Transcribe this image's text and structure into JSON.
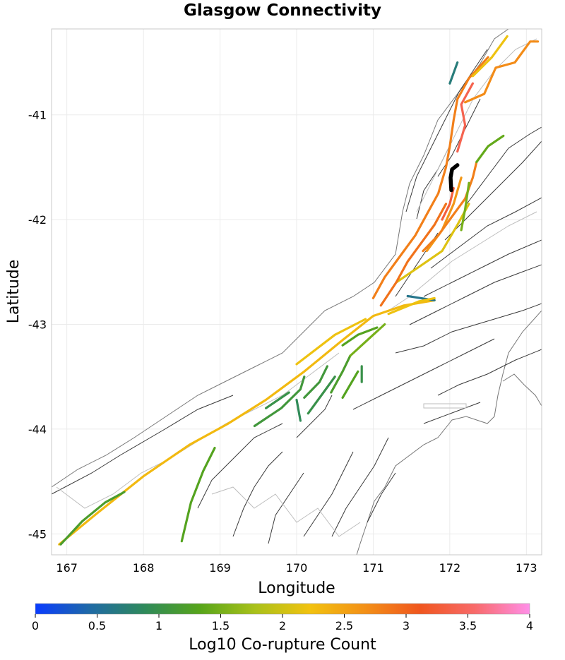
{
  "title": "Glasgow Connectivity",
  "x_label": "Longitude",
  "y_label": "Latitude",
  "x_ticks": [
    "167",
    "168",
    "169",
    "170",
    "171",
    "172",
    "173"
  ],
  "y_ticks": [
    "-41",
    "-42",
    "-43",
    "-44",
    "-45"
  ],
  "colorbar": {
    "label": "Log10 Co-rupture Count",
    "ticks": [
      "0",
      "0.5",
      "1",
      "1.5",
      "2",
      "2.5",
      "3",
      "3.5",
      "4"
    ],
    "colors": [
      "#0a3cff",
      "#1f6aa5",
      "#2f8a5a",
      "#57a51a",
      "#a9c11a",
      "#f2c20f",
      "#f39017",
      "#f0561e",
      "#f86a6a",
      "#ff8fe8"
    ]
  },
  "chart_data": {
    "type": "map",
    "title": "Glasgow Connectivity",
    "xlabel": "Longitude",
    "ylabel": "Latitude",
    "xlim": [
      166.8,
      173.2
    ],
    "ylim": [
      -45.2,
      -40.18
    ],
    "colorbar_range": [
      0,
      4
    ],
    "source_fault": {
      "name": "Glasgow",
      "lon": 172.05,
      "lat": -41.6
    },
    "connections": [
      {
        "value": 2.3,
        "points": [
          [
            166.9,
            -45.1
          ],
          [
            167.4,
            -44.8
          ],
          [
            168.0,
            -44.45
          ],
          [
            168.6,
            -44.15
          ],
          [
            169.1,
            -43.95
          ],
          [
            169.6,
            -43.72
          ],
          [
            170.1,
            -43.45
          ],
          [
            170.6,
            -43.15
          ],
          [
            171.0,
            -42.92
          ],
          [
            171.4,
            -42.82
          ],
          [
            171.8,
            -42.77
          ]
        ]
      },
      {
        "value": 1.2,
        "points": [
          [
            166.92,
            -45.1
          ],
          [
            167.2,
            -44.88
          ],
          [
            167.5,
            -44.7
          ],
          [
            167.75,
            -44.6
          ]
        ]
      },
      {
        "value": 1.3,
        "points": [
          [
            168.5,
            -45.07
          ],
          [
            168.62,
            -44.7
          ],
          [
            168.78,
            -44.4
          ],
          [
            168.93,
            -44.18
          ]
        ]
      },
      {
        "value": 1.1,
        "points": [
          [
            169.45,
            -43.97
          ],
          [
            169.8,
            -43.8
          ],
          [
            170.05,
            -43.62
          ],
          [
            170.1,
            -43.5
          ]
        ]
      },
      {
        "value": 1.0,
        "points": [
          [
            169.6,
            -43.8
          ],
          [
            169.9,
            -43.65
          ]
        ]
      },
      {
        "value": 0.9,
        "points": [
          [
            170.0,
            -43.72
          ],
          [
            170.05,
            -43.92
          ]
        ]
      },
      {
        "value": 1.1,
        "points": [
          [
            170.1,
            -43.7
          ],
          [
            170.3,
            -43.55
          ],
          [
            170.4,
            -43.4
          ]
        ]
      },
      {
        "value": 1.0,
        "points": [
          [
            170.15,
            -43.85
          ],
          [
            170.35,
            -43.65
          ],
          [
            170.5,
            -43.5
          ]
        ]
      },
      {
        "value": 1.2,
        "points": [
          [
            170.45,
            -43.65
          ],
          [
            170.6,
            -43.45
          ],
          [
            170.7,
            -43.3
          ]
        ]
      },
      {
        "value": 1.3,
        "points": [
          [
            170.6,
            -43.7
          ],
          [
            170.8,
            -43.45
          ]
        ]
      },
      {
        "value": 1.0,
        "points": [
          [
            170.85,
            -43.55
          ],
          [
            170.85,
            -43.4
          ]
        ]
      },
      {
        "value": 1.3,
        "points": [
          [
            170.6,
            -43.2
          ],
          [
            170.8,
            -43.1
          ],
          [
            171.05,
            -43.03
          ]
        ]
      },
      {
        "value": 1.5,
        "points": [
          [
            170.7,
            -43.3
          ],
          [
            171.0,
            -43.1
          ],
          [
            171.15,
            -43.0
          ]
        ]
      },
      {
        "value": 2.2,
        "points": [
          [
            170.0,
            -43.38
          ],
          [
            170.5,
            -43.1
          ],
          [
            170.9,
            -42.95
          ]
        ]
      },
      {
        "value": 0.6,
        "points": [
          [
            171.45,
            -42.73
          ],
          [
            171.8,
            -42.77
          ]
        ]
      },
      {
        "value": 2.2,
        "points": [
          [
            171.2,
            -42.9
          ],
          [
            171.6,
            -42.78
          ],
          [
            171.8,
            -42.75
          ]
        ]
      },
      {
        "value": 2.1,
        "points": [
          [
            171.3,
            -42.6
          ],
          [
            171.6,
            -42.45
          ],
          [
            171.9,
            -42.3
          ],
          [
            172.1,
            -42.05
          ],
          [
            172.25,
            -41.85
          ]
        ]
      },
      {
        "value": 2.8,
        "points": [
          [
            171.0,
            -42.75
          ],
          [
            171.15,
            -42.55
          ],
          [
            171.35,
            -42.35
          ],
          [
            171.55,
            -42.15
          ],
          [
            171.7,
            -41.95
          ],
          [
            171.85,
            -41.75
          ],
          [
            171.95,
            -41.5
          ],
          [
            172.0,
            -41.3
          ],
          [
            172.05,
            -41.05
          ],
          [
            172.1,
            -40.85
          ],
          [
            172.25,
            -40.65
          ],
          [
            172.5,
            -40.45
          ]
        ]
      },
      {
        "value": 2.9,
        "points": [
          [
            171.1,
            -42.82
          ],
          [
            171.3,
            -42.6
          ],
          [
            171.45,
            -42.4
          ],
          [
            171.65,
            -42.2
          ],
          [
            171.8,
            -42.05
          ],
          [
            171.95,
            -41.85
          ]
        ]
      },
      {
        "value": 3.3,
        "points": [
          [
            171.9,
            -42.0
          ],
          [
            172.0,
            -41.85
          ],
          [
            172.05,
            -41.7
          ]
        ]
      },
      {
        "value": 2.6,
        "points": [
          [
            171.7,
            -42.3
          ],
          [
            171.9,
            -42.1
          ],
          [
            172.05,
            -41.85
          ],
          [
            172.15,
            -41.6
          ]
        ]
      },
      {
        "value": 3.4,
        "points": [
          [
            172.1,
            -41.35
          ],
          [
            172.2,
            -41.1
          ],
          [
            172.15,
            -40.9
          ],
          [
            172.3,
            -40.7
          ]
        ]
      },
      {
        "value": 2.7,
        "points": [
          [
            172.2,
            -40.88
          ],
          [
            172.45,
            -40.8
          ],
          [
            172.6,
            -40.55
          ],
          [
            172.85,
            -40.5
          ],
          [
            173.05,
            -40.3
          ],
          [
            173.15,
            -40.3
          ]
        ]
      },
      {
        "value": 2.2,
        "points": [
          [
            172.3,
            -40.63
          ],
          [
            172.55,
            -40.45
          ],
          [
            172.75,
            -40.25
          ]
        ]
      },
      {
        "value": 2.8,
        "points": [
          [
            171.65,
            -42.3
          ],
          [
            171.85,
            -42.15
          ],
          [
            172.05,
            -41.95
          ],
          [
            172.2,
            -41.8
          ],
          [
            172.3,
            -41.6
          ],
          [
            172.35,
            -41.45
          ]
        ]
      },
      {
        "value": 0.7,
        "points": [
          [
            172.0,
            -40.7
          ],
          [
            172.1,
            -40.5
          ]
        ]
      },
      {
        "value": 1.4,
        "points": [
          [
            172.35,
            -41.45
          ],
          [
            172.5,
            -41.3
          ],
          [
            172.7,
            -41.2
          ]
        ]
      },
      {
        "value": 1.5,
        "points": [
          [
            172.15,
            -42.1
          ],
          [
            172.2,
            -41.9
          ],
          [
            172.25,
            -41.65
          ]
        ]
      }
    ]
  }
}
